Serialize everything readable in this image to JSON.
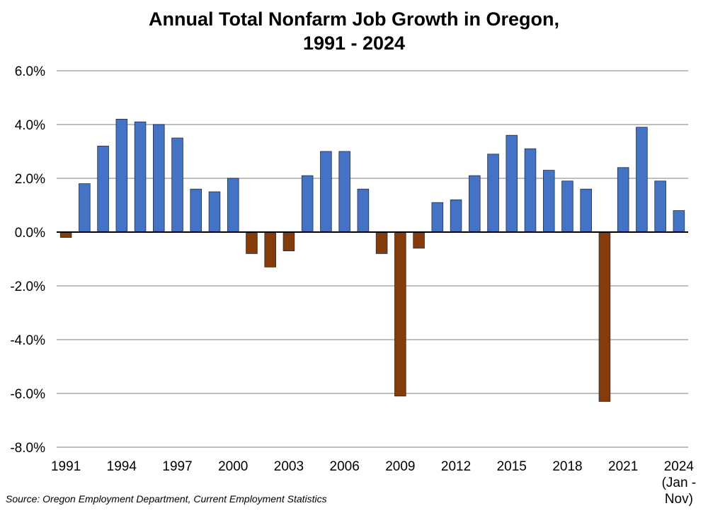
{
  "chart_data": {
    "type": "bar",
    "title_line1": "Annual Total Nonfarm Job Growth in Oregon,",
    "title_line2": "1991 - 2024",
    "source": "Source: Oregon Employment Department, Current Employment Statistics",
    "categories": [
      "1991",
      "1992",
      "1993",
      "1994",
      "1995",
      "1996",
      "1997",
      "1998",
      "1999",
      "2000",
      "2001",
      "2002",
      "2003",
      "2004",
      "2005",
      "2006",
      "2007",
      "2008",
      "2009",
      "2010",
      "2011",
      "2012",
      "2013",
      "2014",
      "2015",
      "2016",
      "2017",
      "2018",
      "2019",
      "2020",
      "2021",
      "2022",
      "2023",
      "2024"
    ],
    "values": [
      -0.2,
      1.8,
      3.2,
      4.2,
      4.1,
      4.0,
      3.5,
      1.6,
      1.5,
      2.0,
      -0.8,
      -1.3,
      -0.7,
      2.1,
      3.0,
      3.0,
      1.6,
      -0.8,
      -6.1,
      -0.6,
      1.1,
      1.2,
      2.1,
      2.9,
      3.6,
      3.1,
      2.3,
      1.9,
      1.6,
      -6.3,
      2.4,
      3.9,
      1.9,
      0.8
    ],
    "x_tick_labels": [
      "1991",
      "1994",
      "1997",
      "2000",
      "2003",
      "2006",
      "2009",
      "2012",
      "2015",
      "2018",
      "2021",
      "2024"
    ],
    "last_label_extra_line1": "(Jan -",
    "last_label_extra_line2": "Nov)",
    "y_ticks": [
      "6.0%",
      "4.0%",
      "2.0%",
      "0.0%",
      "-2.0%",
      "-4.0%",
      "-6.0%",
      "-8.0%"
    ],
    "y_tick_values": [
      6,
      4,
      2,
      0,
      -2,
      -4,
      -6,
      -8
    ],
    "ylim": [
      -8,
      6
    ],
    "xlabel": "",
    "ylabel": "",
    "grid": true,
    "colors": {
      "positive": "#4472C4",
      "negative": "#843C0C",
      "grid": "#BFBFBF",
      "axis": "#000000",
      "bar_edge": "#1F2D4A"
    }
  }
}
